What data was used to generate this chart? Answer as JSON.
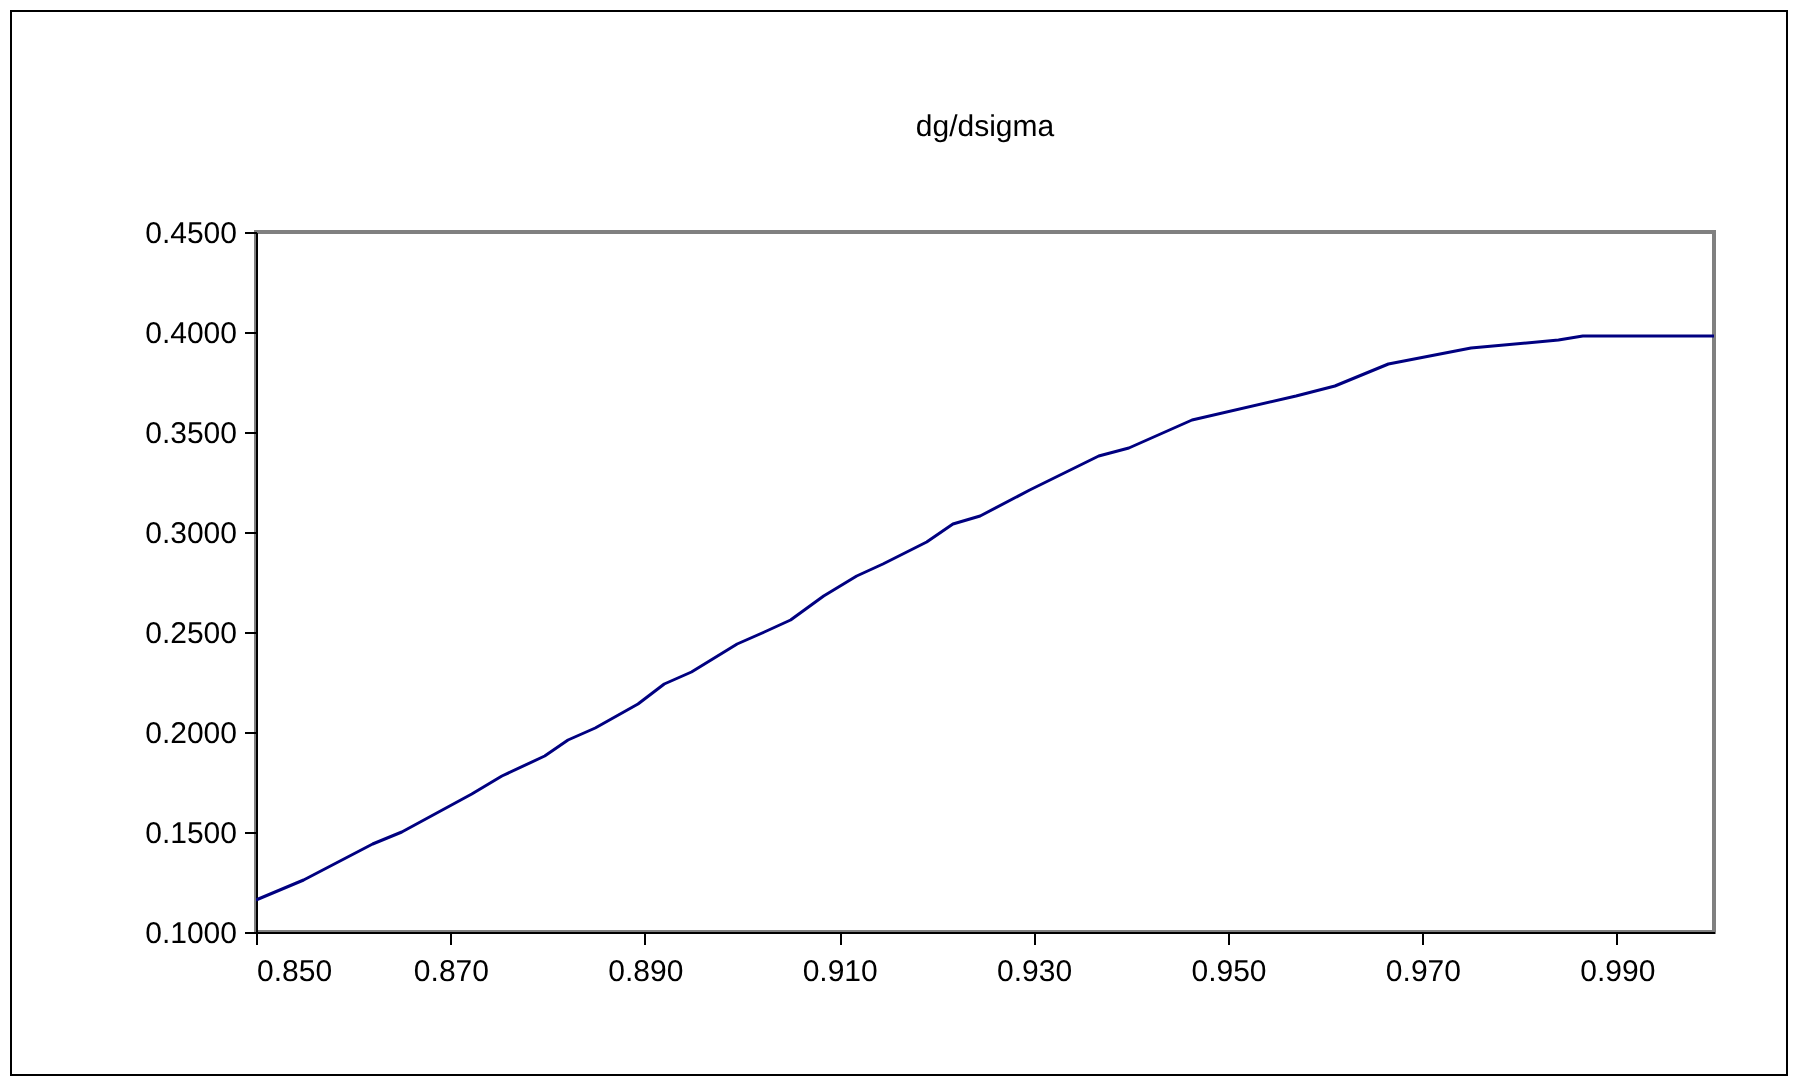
{
  "chart_data": {
    "type": "line",
    "title": "dg/dsigma",
    "x": [
      0.85,
      0.8549,
      0.862,
      0.865,
      0.8722,
      0.8753,
      0.8797,
      0.8821,
      0.8849,
      0.8893,
      0.892,
      0.8948,
      0.8995,
      0.9023,
      0.905,
      0.9084,
      0.9118,
      0.9145,
      0.919,
      0.9217,
      0.9245,
      0.9296,
      0.9367,
      0.9398,
      0.9463,
      0.957,
      0.961,
      0.9665,
      0.975,
      0.984,
      0.9865,
      1.0
    ],
    "series": [
      {
        "color": "#000080",
        "values": [
          0.116,
          0.126,
          0.144,
          0.15,
          0.169,
          0.178,
          0.188,
          0.196,
          0.202,
          0.214,
          0.224,
          0.23,
          0.244,
          0.25,
          0.256,
          0.268,
          0.278,
          0.284,
          0.295,
          0.304,
          0.308,
          0.321,
          0.338,
          0.342,
          0.356,
          0.368,
          0.373,
          0.384,
          0.392,
          0.396,
          0.398,
          0.398
        ]
      }
    ],
    "xlim": [
      0.85,
      1.0
    ],
    "xticks": [
      {
        "value": 0.85,
        "label": "0.850"
      },
      {
        "value": 0.87,
        "label": "0.870"
      },
      {
        "value": 0.89,
        "label": "0.890"
      },
      {
        "value": 0.91,
        "label": "0.910"
      },
      {
        "value": 0.93,
        "label": "0.930"
      },
      {
        "value": 0.95,
        "label": "0.950"
      },
      {
        "value": 0.97,
        "label": "0.970"
      },
      {
        "value": 0.99,
        "label": "0.990"
      }
    ],
    "ylim": [
      0.1,
      0.45
    ],
    "yticks": [
      {
        "value": 0.1,
        "label": "0.1000"
      },
      {
        "value": 0.15,
        "label": "0.1500"
      },
      {
        "value": 0.2,
        "label": "0.2000"
      },
      {
        "value": 0.25,
        "label": "0.2500"
      },
      {
        "value": 0.3,
        "label": "0.3000"
      },
      {
        "value": 0.35,
        "label": "0.3500"
      },
      {
        "value": 0.4,
        "label": "0.4000"
      },
      {
        "value": 0.45,
        "label": "0.4500"
      }
    ],
    "grid": false,
    "marker": "none",
    "line_style": "solid"
  }
}
